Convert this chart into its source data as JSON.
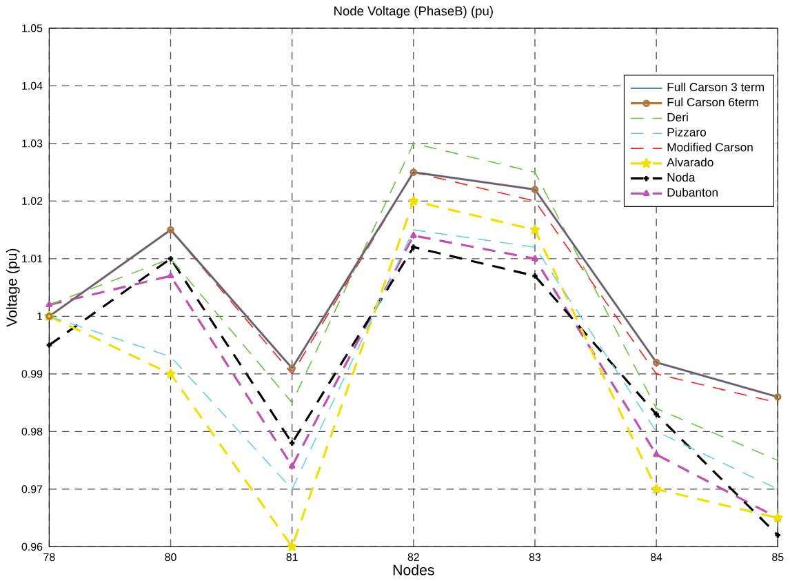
{
  "chart_data": {
    "type": "line",
    "title": "Node Voltage (PhaseB) (pu)",
    "xlabel": "Nodes",
    "ylabel": "Voltage (pu)",
    "categories": [
      "78",
      "80",
      "81",
      "82",
      "83",
      "84",
      "85"
    ],
    "ylim": [
      0.96,
      1.05
    ],
    "yticks": [
      0.96,
      0.97,
      0.98,
      0.99,
      1,
      1.01,
      1.02,
      1.03,
      1.04,
      1.05
    ],
    "grid": true,
    "legend": "top right",
    "series": [
      {
        "name": "Full Carson 3 term",
        "color": "#3a5fb0",
        "marker": "none",
        "line_style": "solid",
        "values": [
          1.0,
          1.015,
          0.991,
          1.025,
          1.022,
          0.992,
          0.986
        ]
      },
      {
        "name": "Ful Carson 6term",
        "color": "#b0783c",
        "marker": "circle",
        "line_style": "solid",
        "values": [
          1.0,
          1.015,
          0.991,
          1.025,
          1.022,
          0.992,
          0.986
        ]
      },
      {
        "name": "Deri",
        "color": "#6cc040",
        "marker": "none",
        "line_style": "dashed",
        "values": [
          1.002,
          1.01,
          0.985,
          1.03,
          1.025,
          0.984,
          0.975
        ]
      },
      {
        "name": "Pizzaro",
        "color": "#66d0e0",
        "marker": "none",
        "line_style": "dashed",
        "values": [
          1.0,
          0.993,
          0.97,
          1.015,
          1.012,
          0.98,
          0.97
        ]
      },
      {
        "name": "Modified Carson",
        "color": "#ee2020",
        "marker": "none",
        "line_style": "dashed",
        "values": [
          1.0,
          1.015,
          0.99,
          1.025,
          1.02,
          0.99,
          0.985
        ]
      },
      {
        "name": "Alvarado",
        "color": "#f0e000",
        "marker": "star",
        "line_style": "dashed",
        "values": [
          1.0,
          0.99,
          0.96,
          1.02,
          1.015,
          0.97,
          0.965
        ]
      },
      {
        "name": "Noda",
        "color": "#000000",
        "marker": "cross",
        "line_style": "dashed",
        "values": [
          0.995,
          1.01,
          0.978,
          1.012,
          1.007,
          0.983,
          0.962
        ]
      },
      {
        "name": "Dubanton",
        "color": "#c050b0",
        "marker": "triangle",
        "line_style": "dashed",
        "values": [
          1.002,
          1.007,
          0.974,
          1.014,
          1.01,
          0.976,
          0.965
        ]
      }
    ]
  }
}
